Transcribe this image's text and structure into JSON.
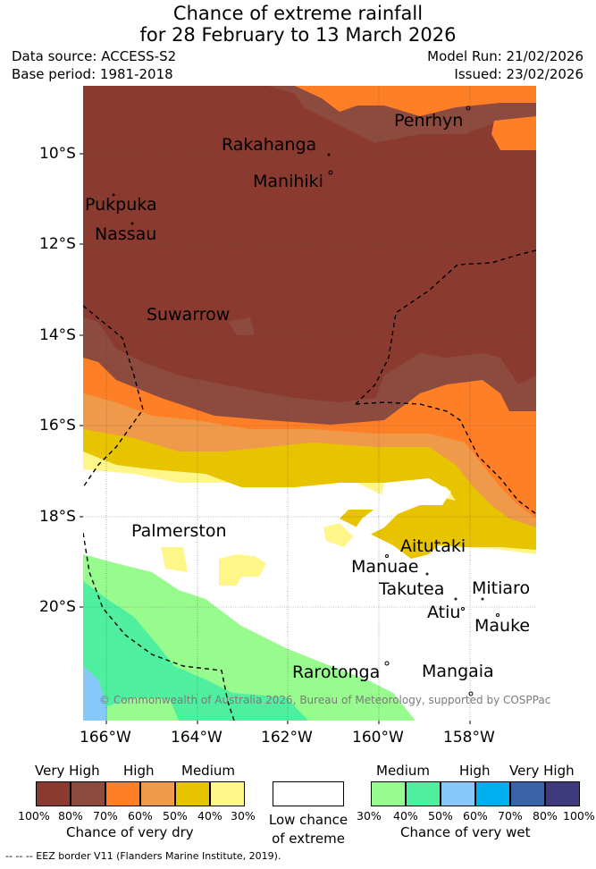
{
  "header": {
    "title_line1": "Chance of extreme rainfall",
    "title_line2": "for 28 February to 13 March 2026",
    "data_source": "Data source: ACCESS-S2",
    "base_period": "Base period: 1981-2018",
    "model_run": "Model Run: 21/02/2026",
    "issued": "Issued: 23/02/2026"
  },
  "map": {
    "lat_ticks": [
      "10°S",
      "12°S",
      "14°S",
      "16°S",
      "18°S",
      "20°S"
    ],
    "lon_ticks": [
      "166°W",
      "164°W",
      "162°W",
      "160°W",
      "158°W"
    ],
    "places": {
      "penrhyn": "Penrhyn",
      "rakahanga": "Rakahanga",
      "manihiki": "Manihiki",
      "pukpuka": "Pukpuka",
      "nassau": "Nassau",
      "suwarrow": "Suwarrow",
      "palmerston": "Palmerston",
      "aitutaki": "Aitutaki",
      "manuae": "Manuae",
      "takutea": "Takutea",
      "mitiaro": "Mitiaro",
      "atiu": "Atiu",
      "mauke": "Mauke",
      "rarotonga": "Rarotonga",
      "mangaia": "Mangaia"
    },
    "copyright": "© Commonwealth of Australia 2026, Bureau of Meteorology, supported by COSPPac"
  },
  "legend": {
    "dry": {
      "headers": [
        "Very High",
        "High",
        "Medium"
      ],
      "colors": [
        "#8b3a30",
        "#8c4b3e",
        "#ff7f27",
        "#ee9a4a",
        "#e8c300",
        "#fff68a"
      ],
      "percents": [
        "100%",
        "80%",
        "70%",
        "60%",
        "50%",
        "40%",
        "30%"
      ],
      "title": "Chance of very dry"
    },
    "neutral": {
      "color": "#ffffff",
      "line1": "Low chance",
      "line2": "of extreme"
    },
    "wet": {
      "headers": [
        "Medium",
        "High",
        "Very High"
      ],
      "colors": [
        "#98fb8e",
        "#4ef0a0",
        "#86c8fa",
        "#00b0ee",
        "#3a62a6",
        "#3e3a7c"
      ],
      "percents": [
        "30%",
        "40%",
        "50%",
        "60%",
        "70%",
        "80%",
        "100%"
      ],
      "title": "Chance of very wet"
    },
    "eez_note": "-- -- -- EEZ border V11 (Flanders Marine Institute, 2019)."
  }
}
